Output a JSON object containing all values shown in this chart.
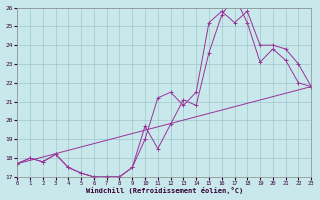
{
  "xlabel": "Windchill (Refroidissement éolien,°C)",
  "xlim": [
    0,
    23
  ],
  "ylim": [
    17,
    26
  ],
  "xticks": [
    0,
    1,
    2,
    3,
    4,
    5,
    6,
    7,
    8,
    9,
    10,
    11,
    12,
    13,
    14,
    15,
    16,
    17,
    18,
    19,
    20,
    21,
    22,
    23
  ],
  "yticks": [
    17,
    18,
    19,
    20,
    21,
    22,
    23,
    24,
    25,
    26
  ],
  "bg_color": "#c8e8ec",
  "grid_color": "#a0c8cc",
  "line_color": "#993399",
  "line1_x": [
    0,
    1,
    2,
    3,
    4,
    5,
    6,
    7,
    8,
    9,
    10,
    11,
    12,
    13,
    14,
    15,
    16,
    17,
    18,
    19,
    20,
    21,
    22,
    23
  ],
  "line1_y": [
    17.7,
    18.0,
    17.8,
    18.2,
    17.5,
    17.2,
    17.0,
    17.0,
    17.0,
    17.5,
    19.7,
    18.5,
    19.8,
    21.1,
    20.8,
    23.6,
    25.6,
    26.6,
    25.2,
    23.1,
    23.8,
    23.2,
    22.0,
    21.8
  ],
  "line2_x": [
    0,
    1,
    2,
    3,
    4,
    5,
    6,
    7,
    8,
    9,
    10,
    11,
    12,
    13,
    14,
    15,
    16,
    17,
    18,
    19,
    20,
    21,
    22,
    23
  ],
  "line2_y": [
    17.7,
    18.0,
    17.8,
    18.2,
    17.5,
    17.2,
    17.0,
    17.0,
    17.0,
    17.5,
    19.0,
    21.2,
    21.5,
    20.8,
    21.5,
    25.2,
    25.8,
    25.2,
    25.8,
    24.0,
    24.0,
    23.8,
    23.0,
    21.8
  ],
  "line3_x": [
    0,
    23
  ],
  "line3_y": [
    17.7,
    21.8
  ]
}
